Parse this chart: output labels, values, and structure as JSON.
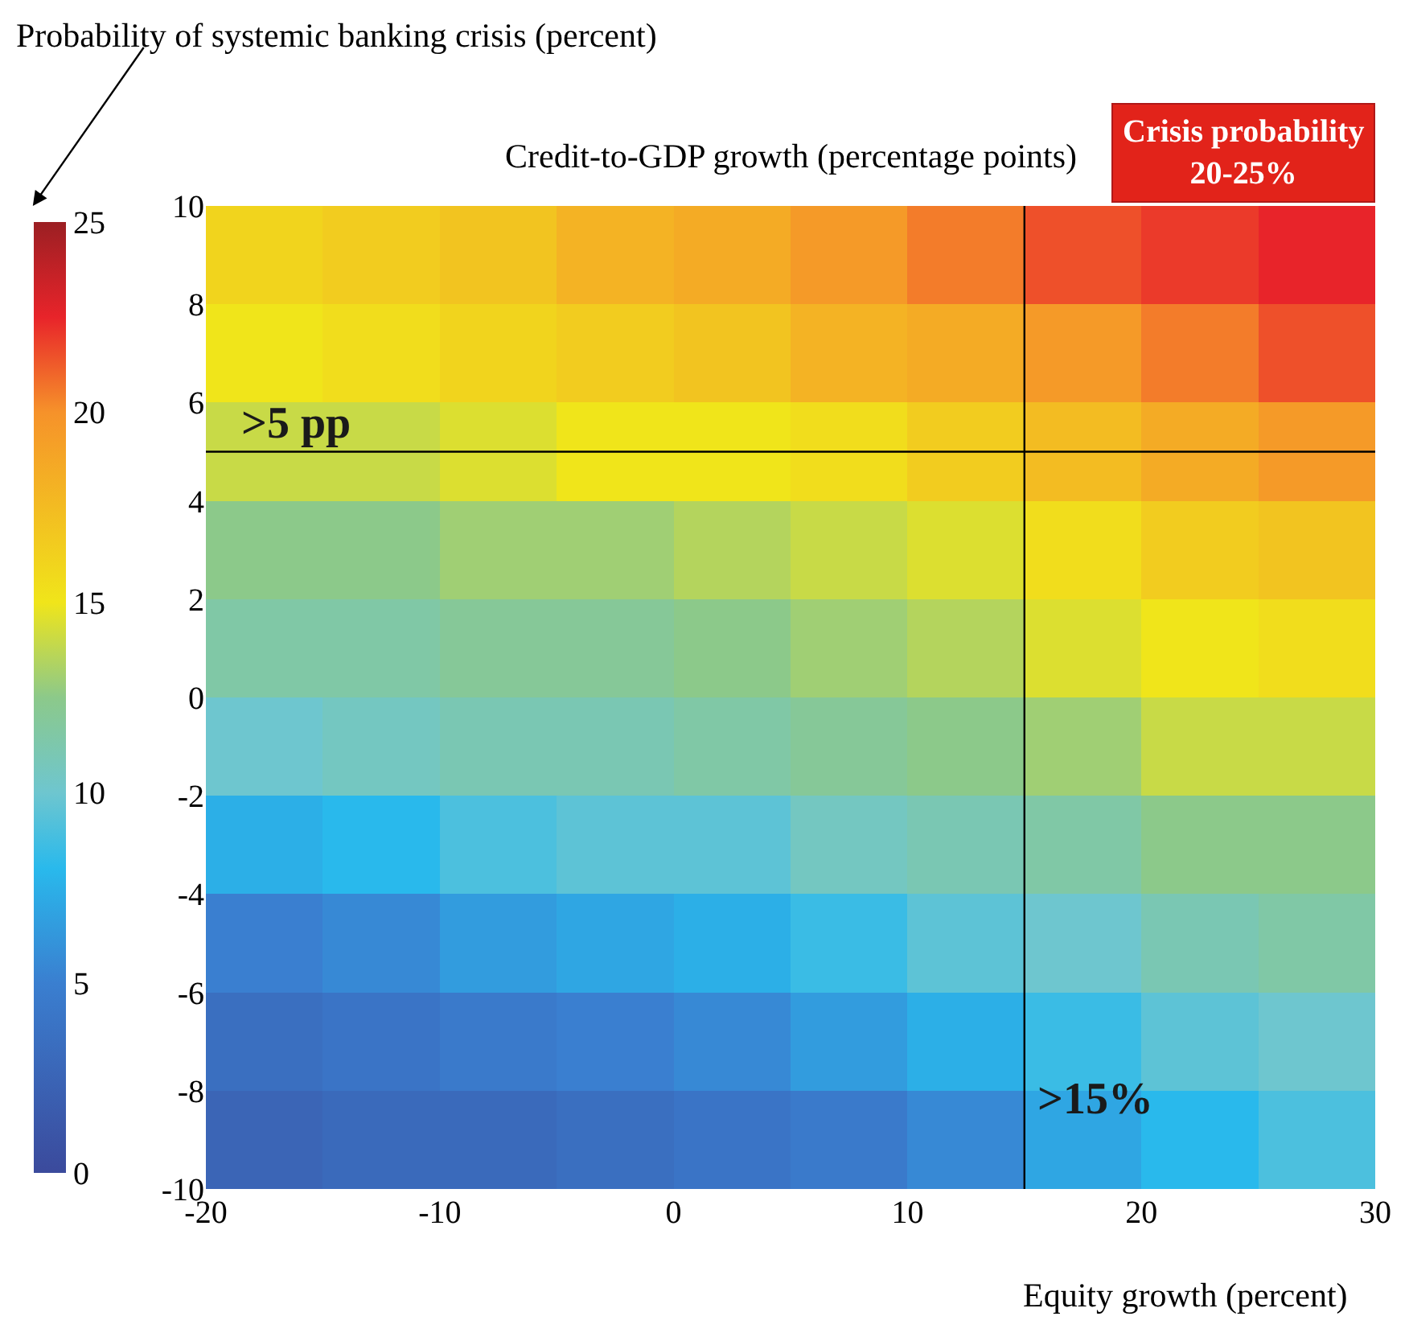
{
  "chart_data": {
    "type": "heatmap",
    "ylabel": "Credit-to-GDP growth (percentage points)",
    "xlabel": "Equity growth (percent)",
    "clabel": "Probability of systemic banking crisis (percent)",
    "x": [
      -17.5,
      -12.5,
      -7.5,
      -2.5,
      2.5,
      7.5,
      12.5,
      17.5,
      22.5,
      27.5
    ],
    "y": [
      9,
      7,
      5,
      3,
      1,
      -1,
      -3,
      -5,
      -7,
      -9
    ],
    "cells": [
      [
        16,
        16.5,
        17,
        18,
        18.5,
        19.5,
        20.5,
        21.5,
        22,
        22.5
      ],
      [
        15,
        15.5,
        16,
        16.5,
        17,
        18,
        18.5,
        19.5,
        20.5,
        21.5
      ],
      [
        14,
        14,
        14.5,
        15,
        15,
        15.5,
        16.5,
        17.5,
        18.5,
        19.5
      ],
      [
        12.5,
        12.5,
        13,
        13,
        13.5,
        14,
        14.5,
        15.5,
        16.5,
        17
      ],
      [
        11.5,
        11.5,
        12,
        12,
        12.5,
        13,
        13.5,
        14.5,
        15,
        15.5
      ],
      [
        10,
        10.5,
        11,
        11,
        11.5,
        12,
        12.5,
        13,
        14,
        14
      ],
      [
        7.5,
        8,
        9,
        9.5,
        9.5,
        10.5,
        11,
        11.5,
        12.5,
        12.5
      ],
      [
        5,
        5.5,
        6.5,
        7,
        7.5,
        8.5,
        9.5,
        10,
        11,
        11.5
      ],
      [
        3.5,
        4,
        4.5,
        5,
        5.5,
        6.5,
        7.5,
        8.5,
        9.5,
        10
      ],
      [
        2.5,
        3,
        3,
        3.5,
        4,
        4.5,
        5.5,
        7,
        8,
        9
      ]
    ],
    "clim": [
      0,
      25
    ],
    "cticks": [
      0,
      5,
      10,
      15,
      20,
      25
    ],
    "xlim": [
      -20,
      30
    ],
    "ylim": [
      -10,
      10
    ],
    "xticks": [
      -20,
      -10,
      0,
      10,
      20,
      30
    ],
    "yticks": [
      -10,
      -8,
      -6,
      -4,
      -2,
      0,
      2,
      4,
      6,
      8,
      10
    ],
    "ref_lines": [
      {
        "axis": "y",
        "value": 5,
        "label": ">5 pp",
        "color": "#000000"
      },
      {
        "axis": "x",
        "value": 15,
        "label": ">15%",
        "color": "#000000"
      }
    ],
    "annotations": [
      "Crisis probability\n20-25%"
    ]
  }
}
